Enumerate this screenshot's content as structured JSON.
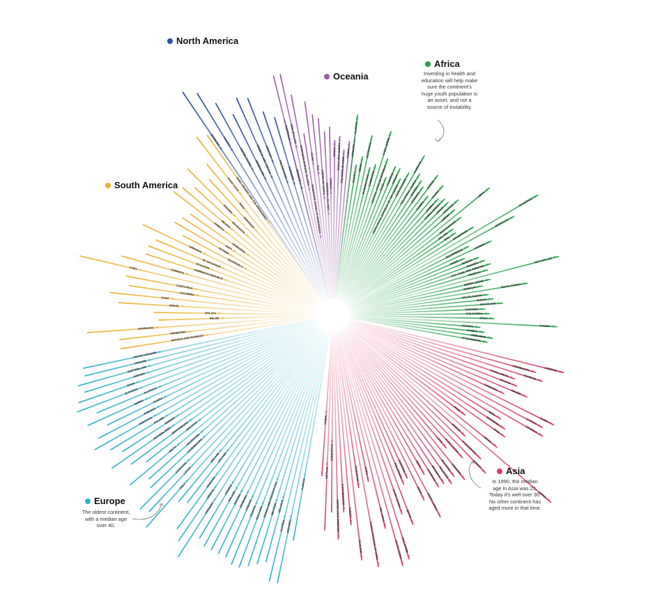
{
  "chart_data": {
    "type": "radial-bar",
    "value_label": "median age",
    "value_range": [
      15,
      48
    ],
    "colors": {
      "North America": "#2b4f9e",
      "Oceania": "#9c5ba8",
      "Africa": "#22a24a",
      "Asia": "#d63b5f",
      "Europe": "#2fb3c9",
      "South America": "#eab22f"
    },
    "regions": [
      {
        "name": "North America",
        "legend": "North America",
        "countries": [
          {
            "name": "BERMUDA",
            "value": 43
          },
          {
            "name": "CANADA",
            "value": 41
          },
          {
            "name": "UNITED STATES",
            "value": 37
          },
          {
            "name": "GREENLAND",
            "value": 33
          },
          {
            "name": "TRINIDAD AND TOBAGO",
            "value": 36
          },
          {
            "name": "URUGUAY",
            "value": 35
          },
          {
            "name": "THE BAHAMAS",
            "value": 31
          },
          {
            "name": "SURINAME",
            "value": 29
          },
          {
            "name": "VENEZUELA",
            "value": 28
          }
        ]
      },
      {
        "name": "Oceania",
        "legend": "Oceania",
        "countries": [
          {
            "name": "AUSTRALIA",
            "value": 38
          },
          {
            "name": "NEW ZEALAND",
            "value": 38
          },
          {
            "name": "NORTHERN MARIANA ISLANDS",
            "value": 33
          },
          {
            "name": "FEDERATED STATES OF MICRONESIA",
            "value": 24
          },
          {
            "name": "GUAM",
            "value": 31
          },
          {
            "name": "FIJI",
            "value": 28
          },
          {
            "name": "AMERICAN SAMOA",
            "value": 27
          },
          {
            "name": "MARSHALL ISLANDS",
            "value": 24
          },
          {
            "name": "KIRIBATI",
            "value": 25
          },
          {
            "name": "TONGA",
            "value": 22
          },
          {
            "name": "PAPUA NEW GUINEA",
            "value": 23
          },
          {
            "name": "SOLOMON ISLANDS",
            "value": 20
          },
          {
            "name": "SAMOA",
            "value": 22
          },
          {
            "name": "VANUATU",
            "value": 23
          }
        ]
      },
      {
        "name": "Africa",
        "legend": "Africa",
        "note": [
          "Investing in health and",
          "education will help make",
          "sure the continent's",
          "huge youth population is",
          "an asset, and not a",
          "source of instability."
        ],
        "countries": [
          {
            "name": "ALGERIA",
            "value": 28
          },
          {
            "name": "ANGOLA",
            "value": 17
          },
          {
            "name": "BENIN",
            "value": 19
          },
          {
            "name": "BOTSWANA",
            "value": 24
          },
          {
            "name": "BURKINA FASO",
            "value": 17
          },
          {
            "name": "CAMEROON",
            "value": 18
          },
          {
            "name": "CABO VERDE",
            "value": 26
          },
          {
            "name": "CENTRAL AFRICAN REPUBLIC",
            "value": 20
          },
          {
            "name": "CHAD",
            "value": 16
          },
          {
            "name": "COMOROS",
            "value": 19
          },
          {
            "name": "CONGO",
            "value": 19
          },
          {
            "name": "DEMOCRATIC REPUBLIC OF THE CONGO",
            "value": 17
          },
          {
            "name": "COTE D'IVOIRE",
            "value": 19
          },
          {
            "name": "DJIBOUTI",
            "value": 24
          },
          {
            "name": "EQUATORIAL GUINEA",
            "value": 20
          },
          {
            "name": "ERITREA",
            "value": 19
          },
          {
            "name": "ETHIOPIA",
            "value": 18
          },
          {
            "name": "GABON",
            "value": 22
          },
          {
            "name": "GAMBIA",
            "value": 17
          },
          {
            "name": "GHANA",
            "value": 21
          },
          {
            "name": "GUINEA",
            "value": 18
          },
          {
            "name": "GUINEA-BISSAU",
            "value": 19
          },
          {
            "name": "KENYA",
            "value": 19
          },
          {
            "name": "LESOTHO",
            "value": 21
          },
          {
            "name": "LIBERIA",
            "value": 19
          },
          {
            "name": "LIBYA",
            "value": 28
          },
          {
            "name": "MADAGASCAR",
            "value": 19
          },
          {
            "name": "MALAWI",
            "value": 16
          },
          {
            "name": "MALI",
            "value": 16
          },
          {
            "name": "MAURITANIA",
            "value": 20
          },
          {
            "name": "MAURITIUS",
            "value": 36
          },
          {
            "name": "MOROCCO",
            "value": 29
          },
          {
            "name": "MOZAMBIQUE",
            "value": 17
          },
          {
            "name": "NAMIBIA",
            "value": 22
          },
          {
            "name": "NIGER",
            "value": 15
          },
          {
            "name": "NIGERIA",
            "value": 18
          },
          {
            "name": "RWANDA",
            "value": 19
          },
          {
            "name": "SAO TOME AND PRINCIPE",
            "value": 20
          },
          {
            "name": "SENEGAL",
            "value": 19
          },
          {
            "name": "SEYCHELLES",
            "value": 35
          },
          {
            "name": "SIERRA LEONE",
            "value": 19
          },
          {
            "name": "SOMALIA",
            "value": 17
          },
          {
            "name": "SOUTH AFRICA",
            "value": 27
          },
          {
            "name": "SOUTH SUDAN",
            "value": 18
          },
          {
            "name": "SUDAN",
            "value": 19
          },
          {
            "name": "SWAZILAND",
            "value": 21
          },
          {
            "name": "TANZANIA",
            "value": 17
          },
          {
            "name": "THE GAMBIA",
            "value": 18
          },
          {
            "name": "TOGO",
            "value": 19
          },
          {
            "name": "TUNISIA",
            "value": 33
          },
          {
            "name": "UGANDA",
            "value": 16
          },
          {
            "name": "ZAMBIA",
            "value": 17
          },
          {
            "name": "ZIMBABWE",
            "value": 19
          },
          {
            "name": "AFGHANISTAN",
            "value": 18
          }
        ]
      },
      {
        "name": "Asia",
        "legend": "Asia",
        "note": [
          "In 1990, the median",
          "age in Asia was 23.",
          "Today it's well over 30.",
          "No other continent has",
          "aged more in that time."
        ],
        "countries": [
          {
            "name": "ARMENIA",
            "value": 36
          },
          {
            "name": "AZERBAIJAN",
            "value": 30
          },
          {
            "name": "BAHRAIN",
            "value": 32
          },
          {
            "name": "BANGLADESH",
            "value": 26
          },
          {
            "name": "BHUTAN",
            "value": 27
          },
          {
            "name": "BRUNEI",
            "value": 30
          },
          {
            "name": "CAMBODIA",
            "value": 25
          },
          {
            "name": "CHINA",
            "value": 38
          },
          {
            "name": "CYPRUS",
            "value": 36
          },
          {
            "name": "GEORGIA",
            "value": 37
          },
          {
            "name": "INDIA",
            "value": 27
          },
          {
            "name": "INDONESIA",
            "value": 29
          },
          {
            "name": "IRAN",
            "value": 30
          },
          {
            "name": "IRAQ",
            "value": 20
          },
          {
            "name": "ISRAEL",
            "value": 30
          },
          {
            "name": "JAPAN",
            "value": 47
          },
          {
            "name": "JORDAN",
            "value": 23
          },
          {
            "name": "KAZAKHSTAN",
            "value": 29
          },
          {
            "name": "KUWAIT",
            "value": 32
          },
          {
            "name": "KYRGYZSTAN",
            "value": 26
          },
          {
            "name": "LAOS",
            "value": 22
          },
          {
            "name": "LEBANON",
            "value": 30
          },
          {
            "name": "MALAYSIA",
            "value": 28
          },
          {
            "name": "MALDIVES",
            "value": 29
          },
          {
            "name": "MONGOLIA",
            "value": 28
          },
          {
            "name": "MYANMAR",
            "value": 28
          },
          {
            "name": "NEPAL",
            "value": 24
          },
          {
            "name": "NORTH KOREA",
            "value": 34
          },
          {
            "name": "OMAN",
            "value": 29
          },
          {
            "name": "PAKISTAN",
            "value": 23
          },
          {
            "name": "PHILIPPINES",
            "value": 24
          },
          {
            "name": "QATAR",
            "value": 33
          },
          {
            "name": "SAUDI ARABIA",
            "value": 30
          },
          {
            "name": "SINGAPORE",
            "value": 40
          },
          {
            "name": "SOUTH KOREA",
            "value": 41
          },
          {
            "name": "SRI LANKA",
            "value": 32
          },
          {
            "name": "SYRIA",
            "value": 21
          },
          {
            "name": "TAIWAN PROVINCE OF CHINA",
            "value": 40
          },
          {
            "name": "TAJIKISTAN",
            "value": 22
          },
          {
            "name": "THAILAND",
            "value": 38
          },
          {
            "name": "TURKEY",
            "value": 30
          },
          {
            "name": "TURKMENISTAN",
            "value": 27
          },
          {
            "name": "UNITED ARAB EMIRATES",
            "value": 33
          },
          {
            "name": "UZBEKISTAN",
            "value": 27
          },
          {
            "name": "VIETNAM",
            "value": 31
          },
          {
            "name": "YEMEN",
            "value": 19
          }
        ]
      },
      {
        "name": "Europe",
        "legend": "Europe",
        "note": [
          "The oldest continent,",
          "with a median age",
          "over 40."
        ],
        "countries": [
          {
            "name": "ALBANIA",
            "value": 34
          },
          {
            "name": "ANDORRA",
            "value": 44
          },
          {
            "name": "AUSTRIA",
            "value": 44
          },
          {
            "name": "BELARUS",
            "value": 40
          },
          {
            "name": "BELGIUM",
            "value": 41
          },
          {
            "name": "BOSNIA AND HERZEGOVINA",
            "value": 42
          },
          {
            "name": "BULGARIA",
            "value": 43
          },
          {
            "name": "CROATIA",
            "value": 43
          },
          {
            "name": "CZECHIA",
            "value": 42
          },
          {
            "name": "DENMARK",
            "value": 42
          },
          {
            "name": "ESTONIA",
            "value": 42
          },
          {
            "name": "FINLAND",
            "value": 42
          },
          {
            "name": "FRANCE",
            "value": 41
          },
          {
            "name": "GERMANY",
            "value": 47
          },
          {
            "name": "GREECE",
            "value": 44
          },
          {
            "name": "HUNGARY",
            "value": 42
          },
          {
            "name": "ICELAND",
            "value": 36
          },
          {
            "name": "IRELAND",
            "value": 37
          },
          {
            "name": "ITALY",
            "value": 46
          },
          {
            "name": "LATVIA",
            "value": 43
          },
          {
            "name": "LITHUANIA",
            "value": 44
          },
          {
            "name": "LUXEMBOURG",
            "value": 39
          },
          {
            "name": "MACEDONIA",
            "value": 38
          },
          {
            "name": "MALTA",
            "value": 42
          },
          {
            "name": "MOLDOVA",
            "value": 36
          },
          {
            "name": "MONTENEGRO",
            "value": 39
          },
          {
            "name": "NETHERLANDS",
            "value": 43
          },
          {
            "name": "NORWAY",
            "value": 39
          },
          {
            "name": "POLAND",
            "value": 41
          },
          {
            "name": "PORTUGAL",
            "value": 44
          },
          {
            "name": "ROMANIA",
            "value": 42
          },
          {
            "name": "RUSSIA",
            "value": 39
          },
          {
            "name": "SERBIA",
            "value": 43
          },
          {
            "name": "SLOVAKIA",
            "value": 40
          },
          {
            "name": "SLOVENIA",
            "value": 44
          },
          {
            "name": "SPAIN",
            "value": 43
          },
          {
            "name": "SWEDEN",
            "value": 41
          },
          {
            "name": "SWITZERLAND",
            "value": 42
          },
          {
            "name": "UKRAINE",
            "value": 40
          },
          {
            "name": "UNITED KINGDOM",
            "value": 40
          }
        ]
      },
      {
        "name": "South America",
        "legend": "South America",
        "countries": [
          {
            "name": "ANTIGUA AND BARBUDA",
            "value": 31
          },
          {
            "name": "ARGENTINA",
            "value": 31
          },
          {
            "name": "BARBADOS",
            "value": 38
          },
          {
            "name": "BELIZE",
            "value": 22
          },
          {
            "name": "BOLIVIA",
            "value": 23
          },
          {
            "name": "BRAZIL",
            "value": 31
          },
          {
            "name": "CHILE",
            "value": 33
          },
          {
            "name": "COLOMBIA",
            "value": 29
          },
          {
            "name": "COSTA RICA",
            "value": 30
          },
          {
            "name": "CUBA",
            "value": 41
          },
          {
            "name": "DOMINICA",
            "value": 32
          },
          {
            "name": "DOMINICAN REPUBLIC",
            "value": 27
          },
          {
            "name": "ECUADOR",
            "value": 27
          },
          {
            "name": "EL SALVADOR",
            "value": 26
          },
          {
            "name": "GRENADA",
            "value": 30
          },
          {
            "name": "GUATEMALA",
            "value": 21
          },
          {
            "name": "GUYANA",
            "value": 24
          },
          {
            "name": "HAITI",
            "value": 23
          },
          {
            "name": "HONDURAS",
            "value": 22
          },
          {
            "name": "JAMAICA",
            "value": 28
          },
          {
            "name": "MEXICO",
            "value": 27
          },
          {
            "name": "NICARAGUA",
            "value": 25
          },
          {
            "name": "PANAMA",
            "value": 29
          },
          {
            "name": "PARAGUAY",
            "value": 24
          },
          {
            "name": "PERU",
            "value": 27
          },
          {
            "name": "SAINT LUCIA",
            "value": 33
          },
          {
            "name": "SAINT VINCENT AND THE GRENADINES",
            "value": 32
          }
        ]
      }
    ]
  }
}
